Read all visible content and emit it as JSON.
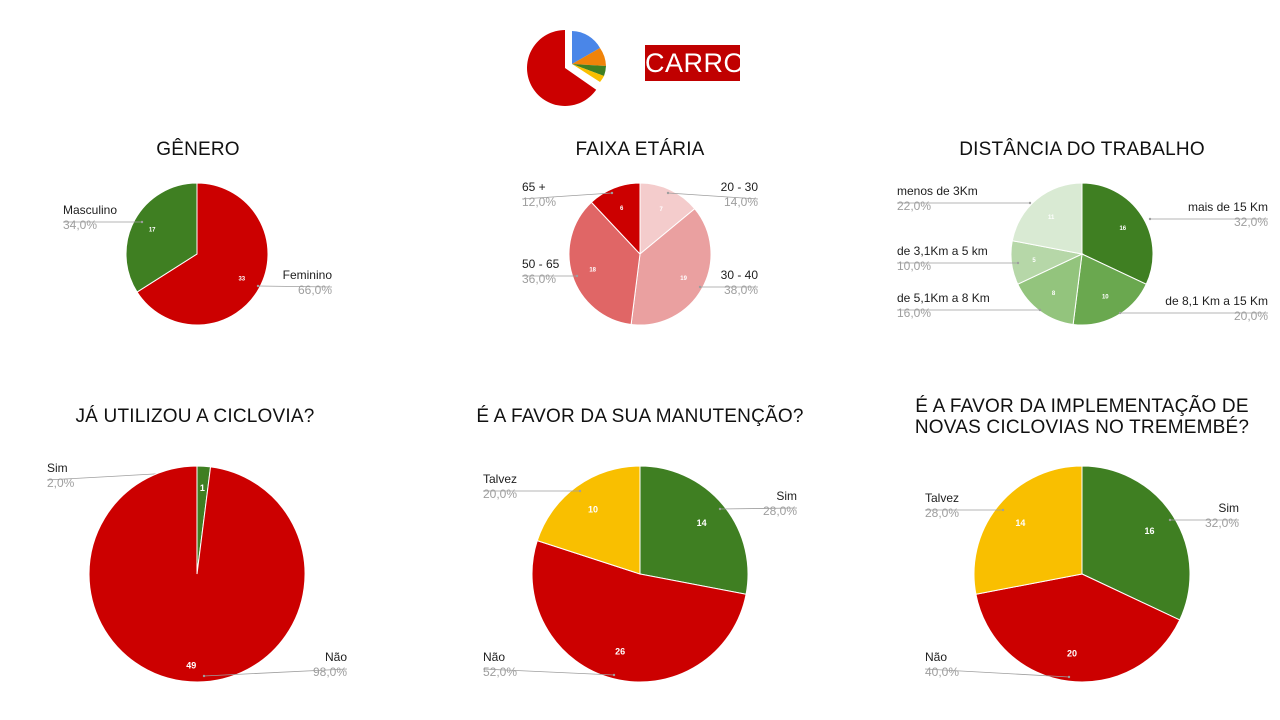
{
  "header": {
    "badge_label": "CARRO"
  },
  "colors": {
    "green": "#3f7f22",
    "red": "#cc0000",
    "yellow": "#f9bf00",
    "logo_blue": "#4a86e8",
    "logo_orange": "#f0830a",
    "logo_green": "#3f7f22",
    "logo_yellow": "#f9bf00"
  },
  "chart_data": [
    {
      "id": "genero",
      "type": "pie",
      "title": "GÊNERO",
      "categories": [
        "Feminino",
        "Masculino"
      ],
      "values": [
        33,
        17
      ],
      "percent_labels": [
        "66,0%",
        "34,0%"
      ],
      "colors": [
        "#cc0000",
        "#3f7f22"
      ]
    },
    {
      "id": "faixa-etaria",
      "type": "pie",
      "title": "FAIXA ETÁRIA",
      "categories": [
        "20 - 30",
        "30 - 40",
        "50 - 65",
        "65 +"
      ],
      "values": [
        7,
        19,
        18,
        6
      ],
      "percent_labels": [
        "14,0%",
        "38,0%",
        "36,0%",
        "12,0%"
      ],
      "colors": [
        "#f4cccc",
        "#eaa0a0",
        "#e06666",
        "#cc0000"
      ]
    },
    {
      "id": "distancia",
      "type": "pie",
      "title": "DISTÂNCIA DO TRABALHO",
      "categories": [
        "mais de 15 Km",
        "de 8,1 Km a 15 Km",
        "de 5,1Km a 8 Km",
        "de 3,1Km a 5 km",
        "menos de 3Km"
      ],
      "values": [
        16,
        10,
        8,
        5,
        11
      ],
      "percent_labels": [
        "32,0%",
        "20,0%",
        "16,0%",
        "10,0%",
        "22,0%"
      ],
      "colors": [
        "#3f7f22",
        "#6aa84f",
        "#93c47d",
        "#b6d7a8",
        "#d9ead3"
      ]
    },
    {
      "id": "ja-utilizou",
      "type": "pie",
      "title": "JÁ UTILIZOU A CICLOVIA?",
      "categories": [
        "Sim",
        "Não"
      ],
      "values": [
        1,
        49
      ],
      "percent_labels": [
        "2,0%",
        "98,0%"
      ],
      "colors": [
        "#3f7f22",
        "#cc0000"
      ]
    },
    {
      "id": "manutencao",
      "type": "pie",
      "title": "É A FAVOR DA SUA MANUTENÇÃO?",
      "categories": [
        "Sim",
        "Não",
        "Talvez"
      ],
      "values": [
        14,
        26,
        10
      ],
      "percent_labels": [
        "28,0%",
        "52,0%",
        "20,0%"
      ],
      "colors": [
        "#3f7f22",
        "#cc0000",
        "#f9bf00"
      ]
    },
    {
      "id": "implementacao",
      "type": "pie",
      "title": "É A FAVOR DA IMPLEMENTAÇÃO DE NOVAS CICLOVIAS NO TREMEMBÉ?",
      "title_lines": [
        "É A FAVOR DA IMPLEMENTAÇÃO DE",
        "NOVAS CICLOVIAS NO TREMEMBÉ?"
      ],
      "categories": [
        "Sim",
        "Não",
        "Talvez"
      ],
      "values": [
        16,
        20,
        14
      ],
      "percent_labels": [
        "32,0%",
        "40,0%",
        "28,0%"
      ],
      "colors": [
        "#3f7f22",
        "#cc0000",
        "#f9bf00"
      ]
    }
  ]
}
